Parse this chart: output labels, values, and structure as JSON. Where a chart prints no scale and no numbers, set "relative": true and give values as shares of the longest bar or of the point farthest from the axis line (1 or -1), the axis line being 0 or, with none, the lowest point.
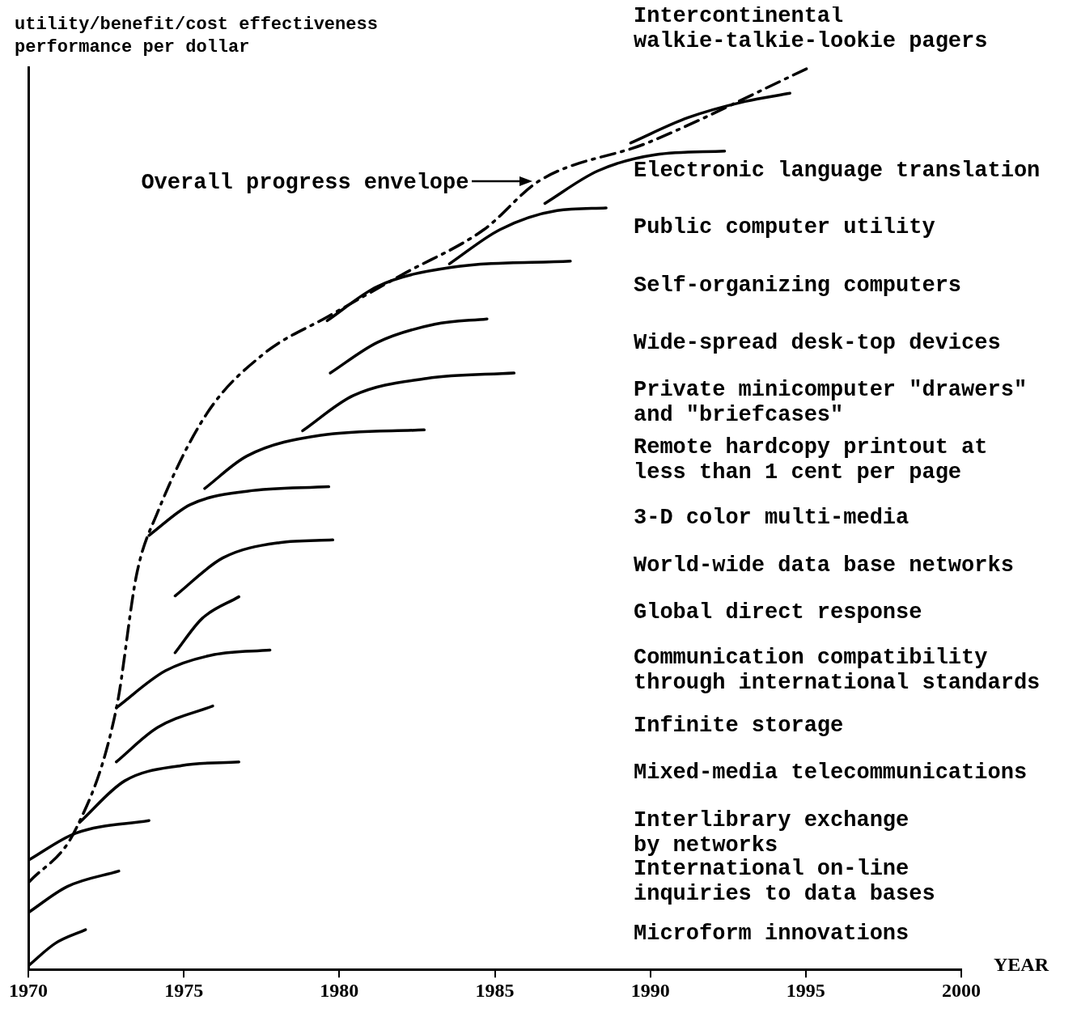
{
  "chart_data": {
    "type": "line",
    "relative": true,
    "xlabel": "YEAR",
    "ylabel": "utility/benefit/cost effectiveness\nperformance per dollar",
    "xlim": [
      1970,
      2000
    ],
    "xticks": [
      1970,
      1975,
      1980,
      1985,
      1990,
      1995,
      2000
    ],
    "tick_labels": "x",
    "marker": "none",
    "annotations": [
      "Overall progress envelope",
      "Intercontinental\nwalkie-talkie-lookie pagers",
      "Electronic language translation",
      "Public computer utility",
      "Self-organizing computers",
      "Wide-spread desk-top devices",
      "Private minicomputer \"drawers\"\nand \"briefcases\"",
      "Remote hardcopy printout at\nless than 1 cent per page",
      "3-D color multi-media",
      "World-wide data base networks",
      "Global direct response",
      "Communication compatibility\nthrough international standards",
      "Infinite storage",
      "Mixed-media telecommunications",
      "Interlibrary exchange\nby networks",
      "International on-line\ninquiries to data bases",
      "Microform innovations"
    ],
    "series": [
      {
        "color": "#000000",
        "line_style": "dashed",
        "x": [
          1970,
          1971.52,
          1972.83,
          1973.49,
          1974.15,
          1975.72,
          1977.56,
          1979.66,
          1982.02,
          1984.65,
          1986.43,
          1989.9,
          1995.14
        ],
        "values": [
          0.096,
          0.155,
          0.289,
          0.439,
          0.506,
          0.615,
          0.682,
          0.724,
          0.77,
          0.82,
          0.874,
          0.916,
          1
        ]
      },
      {
        "color": "#000000",
        "x": [
          1989.37,
          1991.21,
          1993.05,
          1994.49
        ],
        "values": [
          0.916,
          0.944,
          0.962,
          0.971
        ]
      },
      {
        "color": "#000000",
        "x": [
          1986.61,
          1988.31,
          1990.16,
          1992.39
        ],
        "values": [
          0.849,
          0.885,
          0.903,
          0.907
        ]
      },
      {
        "color": "#000000",
        "x": [
          1983.54,
          1985.17,
          1987.0,
          1988.58
        ],
        "values": [
          0.782,
          0.82,
          0.841,
          0.844
        ]
      },
      {
        "color": "#000000",
        "x": [
          1979.61,
          1981.23,
          1983.59,
          1987.43
        ],
        "values": [
          0.719,
          0.757,
          0.778,
          0.785
        ]
      },
      {
        "color": "#000000",
        "x": [
          1979.71,
          1981.23,
          1983.07,
          1984.75
        ],
        "values": [
          0.661,
          0.695,
          0.715,
          0.721
        ]
      },
      {
        "color": "#000000",
        "x": [
          1978.82,
          1980.45,
          1982.81,
          1985.62
        ],
        "values": [
          0.597,
          0.636,
          0.655,
          0.661
        ]
      },
      {
        "color": "#000000",
        "x": [
          1975.67,
          1977.03,
          1979.4,
          1982.73
        ],
        "values": [
          0.533,
          0.569,
          0.592,
          0.598
        ]
      },
      {
        "color": "#000000",
        "x": [
          1973.88,
          1975.2,
          1977.03,
          1979.66
        ],
        "values": [
          0.481,
          0.515,
          0.53,
          0.535
        ]
      },
      {
        "color": "#000000",
        "x": [
          1974.72,
          1976.25,
          1978.08,
          1979.79
        ],
        "values": [
          0.414,
          0.456,
          0.473,
          0.476
        ]
      },
      {
        "color": "#000000",
        "x": [
          1974.72,
          1975.59,
          1976.77
        ],
        "values": [
          0.351,
          0.389,
          0.413
        ]
      },
      {
        "color": "#000000",
        "x": [
          1972.83,
          1974.41,
          1975.98,
          1977.77
        ],
        "values": [
          0.29,
          0.331,
          0.349,
          0.354
        ]
      },
      {
        "color": "#000000",
        "x": [
          1972.83,
          1974.15,
          1975.93
        ],
        "values": [
          0.23,
          0.268,
          0.292
        ]
      },
      {
        "color": "#000000",
        "x": [
          1971.65,
          1973.1,
          1974.93,
          1976.77
        ],
        "values": [
          0.163,
          0.209,
          0.226,
          0.23
        ]
      },
      {
        "color": "#000000",
        "x": [
          1970,
          1971.52,
          1973.88
        ],
        "values": [
          0.121,
          0.151,
          0.165
        ]
      },
      {
        "color": "#000000",
        "x": [
          1970,
          1971.26,
          1972.91
        ],
        "values": [
          0.063,
          0.092,
          0.109
        ]
      },
      {
        "color": "#000000",
        "x": [
          1970,
          1970.87,
          1971.84
        ],
        "values": [
          0.004,
          0.029,
          0.044
        ]
      }
    ]
  }
}
